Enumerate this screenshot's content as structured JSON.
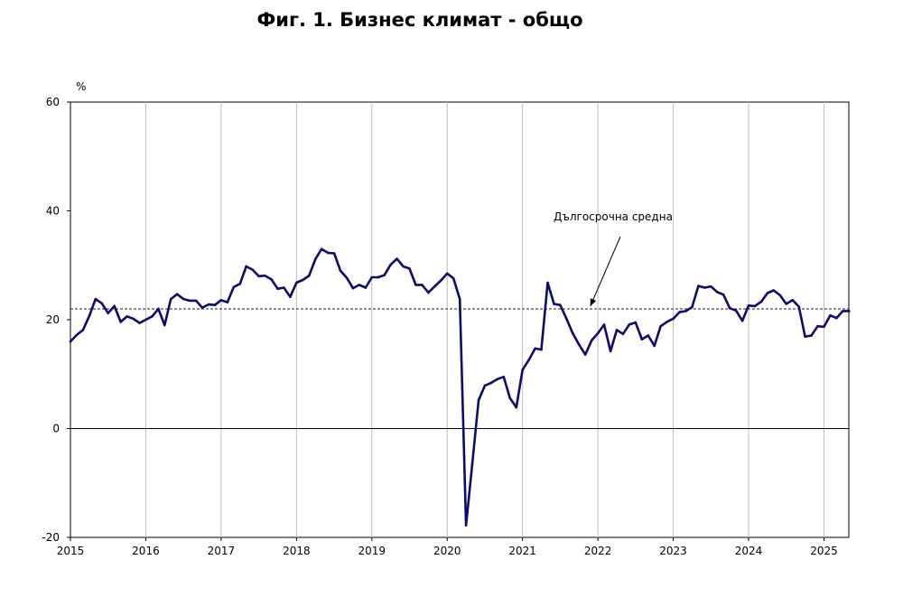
{
  "chart_data": {
    "type": "line",
    "title": "Фиг. 1. Бизнес климат - общо",
    "y_unit_label": "%",
    "ylim": [
      -20,
      60
    ],
    "y_ticks": [
      60,
      40,
      20,
      0,
      -20
    ],
    "x_range": [
      2015.0,
      2025.33
    ],
    "x_ticks": [
      "2015",
      "2016",
      "2017",
      "2018",
      "2019",
      "2020",
      "2021",
      "2022",
      "2023",
      "2024",
      "2025"
    ],
    "grid": "vertical",
    "reference_line": {
      "label": "Дългосрочна средна",
      "value": 22.0
    },
    "series": [
      {
        "color": "#0c0c6e",
        "x": [
          2015.0,
          2015.083,
          2015.167,
          2015.25,
          2015.333,
          2015.417,
          2015.5,
          2015.583,
          2015.667,
          2015.75,
          2015.833,
          2015.917,
          2016.0,
          2016.083,
          2016.167,
          2016.25,
          2016.333,
          2016.417,
          2016.5,
          2016.583,
          2016.667,
          2016.75,
          2016.833,
          2016.917,
          2017.0,
          2017.083,
          2017.167,
          2017.25,
          2017.333,
          2017.417,
          2017.5,
          2017.583,
          2017.667,
          2017.75,
          2017.833,
          2017.917,
          2018.0,
          2018.083,
          2018.167,
          2018.25,
          2018.333,
          2018.417,
          2018.5,
          2018.583,
          2018.667,
          2018.75,
          2018.833,
          2018.917,
          2019.0,
          2019.083,
          2019.167,
          2019.25,
          2019.333,
          2019.417,
          2019.5,
          2019.583,
          2019.667,
          2019.75,
          2019.833,
          2019.917,
          2020.0,
          2020.083,
          2020.167,
          2020.25,
          2020.333,
          2020.417,
          2020.5,
          2020.583,
          2020.667,
          2020.75,
          2020.833,
          2020.917,
          2021.0,
          2021.083,
          2021.167,
          2021.25,
          2021.333,
          2021.417,
          2021.5,
          2021.583,
          2021.667,
          2021.75,
          2021.833,
          2021.917,
          2022.0,
          2022.083,
          2022.167,
          2022.25,
          2022.333,
          2022.417,
          2022.5,
          2022.583,
          2022.667,
          2022.75,
          2022.833,
          2022.917,
          2023.0,
          2023.083,
          2023.167,
          2023.25,
          2023.333,
          2023.417,
          2023.5,
          2023.583,
          2023.667,
          2023.75,
          2023.833,
          2023.917,
          2024.0,
          2024.083,
          2024.167,
          2024.25,
          2024.333,
          2024.417,
          2024.5,
          2024.583,
          2024.667,
          2024.75,
          2024.833,
          2024.917,
          2025.0,
          2025.083,
          2025.167,
          2025.25,
          2025.333
        ],
        "y": [
          16.0,
          17.2,
          18.1,
          20.7,
          23.8,
          23.0,
          21.2,
          22.5,
          19.6,
          20.6,
          20.2,
          19.4,
          20.0,
          20.6,
          22.0,
          19.0,
          23.8,
          24.7,
          23.8,
          23.5,
          23.5,
          22.2,
          22.8,
          22.7,
          23.6,
          23.2,
          26.0,
          26.6,
          29.8,
          29.2,
          28.0,
          28.1,
          27.4,
          25.7,
          25.9,
          24.2,
          26.8,
          27.3,
          28.1,
          31.1,
          33.0,
          32.3,
          32.2,
          29.0,
          27.7,
          25.8,
          26.4,
          25.9,
          27.8,
          27.8,
          28.2,
          30.1,
          31.2,
          29.8,
          29.4,
          26.4,
          26.4,
          25.0,
          26.1,
          27.2,
          28.5,
          27.6,
          23.8,
          -17.8,
          -6.5,
          5.2,
          7.9,
          8.4,
          9.1,
          9.5,
          5.6,
          3.9,
          10.8,
          12.6,
          14.7,
          14.5,
          26.8,
          22.9,
          22.7,
          20.2,
          17.5,
          15.4,
          13.6,
          16.2,
          17.5,
          19.1,
          14.2,
          18.1,
          17.4,
          19.1,
          19.5,
          16.4,
          17.1,
          15.2,
          18.8,
          19.6,
          20.2,
          21.4,
          21.6,
          22.3,
          26.2,
          25.9,
          26.1,
          25.1,
          24.6,
          22.1,
          21.7,
          19.8,
          22.6,
          22.5,
          23.3,
          24.9,
          25.4,
          24.5,
          22.9,
          23.6,
          22.4,
          16.9,
          17.1,
          18.8,
          18.7,
          20.8,
          20.3,
          21.6,
          21.6
        ]
      }
    ]
  }
}
